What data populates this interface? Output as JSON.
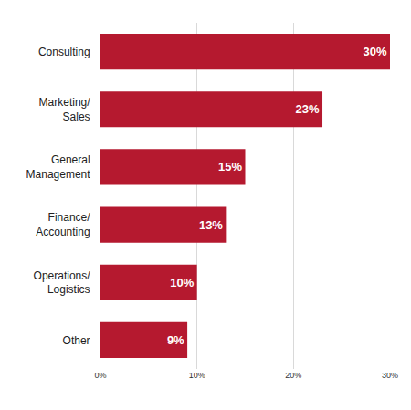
{
  "chart_data": {
    "type": "bar",
    "orientation": "horizontal",
    "categories": [
      "Consulting",
      "Marketing/\nSales",
      "General\nManagement",
      "Finance/\nAccounting",
      "Operations/\nLogistics",
      "Other"
    ],
    "values": [
      30,
      23,
      15,
      13,
      10,
      9
    ],
    "value_labels": [
      "30%",
      "23%",
      "15%",
      "13%",
      "10%",
      "9%"
    ],
    "data_labels": true,
    "color": "#b5192f",
    "xlim": [
      0,
      30
    ],
    "xticks": [
      {
        "value": 0,
        "label": "0%"
      },
      {
        "value": 10,
        "label": "10%"
      },
      {
        "value": 20,
        "label": "20%"
      },
      {
        "value": 30,
        "label": "30%"
      }
    ],
    "grid": true
  }
}
